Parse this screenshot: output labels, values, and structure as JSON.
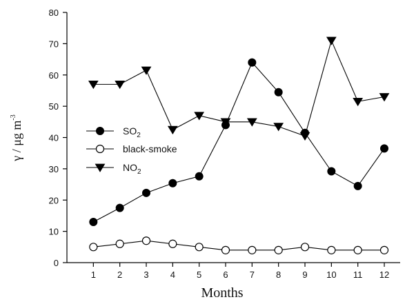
{
  "chart_data": {
    "type": "line",
    "xlabel": "Months",
    "ylabel_main": "γ / μg m",
    "ylabel_sup": "-3",
    "x": [
      1,
      2,
      3,
      4,
      5,
      6,
      7,
      8,
      9,
      10,
      11,
      12
    ],
    "xlim": [
      0,
      12.6
    ],
    "ylim": [
      0,
      80
    ],
    "yticks": [
      0,
      10,
      20,
      30,
      40,
      50,
      60,
      70,
      80
    ],
    "grid": false,
    "legend_position": "left",
    "series": [
      {
        "name": "SO",
        "name_sub": "2",
        "marker": "filled-circle",
        "values": [
          13,
          17.5,
          22.3,
          25.4,
          27.6,
          44,
          64,
          54.5,
          41.5,
          29.2,
          24.5,
          36.5
        ]
      },
      {
        "name": "black-smoke",
        "name_sub": "",
        "marker": "open-circle",
        "values": [
          5,
          6,
          7,
          6,
          5,
          4,
          4,
          4,
          5,
          4,
          4,
          4
        ]
      },
      {
        "name": "NO",
        "name_sub": "2",
        "marker": "filled-triangle-down",
        "values": [
          57,
          57,
          61.5,
          42.5,
          47,
          45,
          45,
          43.5,
          40.5,
          71,
          51.5,
          53
        ]
      }
    ]
  }
}
